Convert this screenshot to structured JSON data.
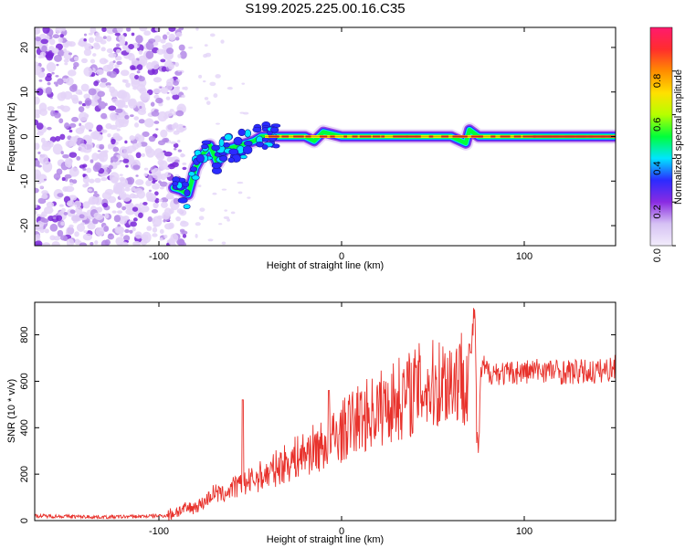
{
  "title": "S199.2025.225.00.16.C35",
  "colors": {
    "snr_line": "#e8322c",
    "ridge_core": "#e8322c",
    "noise_light": "#e4d4f8",
    "noise_mid": "#b48ae8",
    "noise_dark": "#7a28d8",
    "frame": "#000000"
  },
  "chart_data": [
    {
      "name": "spectrogram",
      "type": "heatmap",
      "xlabel": "Height of straight line (km)",
      "ylabel": "Frequency (Hz)",
      "xlim": [
        -168,
        150
      ],
      "ylim": [
        -24.5,
        24.5
      ],
      "xticks": [
        -100,
        0,
        100
      ],
      "yticks": [
        -20,
        -10,
        0,
        10,
        20
      ],
      "xtick_labels": [
        "-100",
        "0",
        "100"
      ],
      "ytick_labels": [
        "-20",
        "-10",
        "0",
        "10",
        "20"
      ],
      "ridge": {
        "x": [
          -92,
          -88,
          -84,
          -80,
          -76,
          -72,
          -68,
          -64,
          -60,
          -56,
          -52,
          -48,
          -44,
          -40,
          -30,
          -20,
          -15,
          -10,
          0,
          20,
          40,
          60,
          68,
          70,
          75,
          80,
          100,
          120,
          150
        ],
        "y": [
          -11.5,
          -12,
          -13,
          -7,
          -4,
          -2,
          -6,
          -3,
          -2.5,
          -2,
          -1.5,
          -1,
          0,
          0,
          0,
          0,
          -1,
          1,
          0,
          0,
          0,
          0,
          -1.5,
          1.5,
          0,
          0,
          0,
          0,
          0
        ]
      },
      "colorbar": {
        "label": "Normalized spectral amplitude",
        "range": [
          0,
          1
        ],
        "ticks": [
          0.0,
          0.2,
          0.4,
          0.6,
          0.8
        ],
        "tick_labels": [
          "0.0",
          "0.2",
          "0.4",
          "0.6",
          "0.8"
        ],
        "stops": [
          "#f2ecfb",
          "#d6c2f4",
          "#8a2be2",
          "#2b2bff",
          "#00e5ff",
          "#00ff3a",
          "#b6ff00",
          "#ffe000",
          "#ff8c00",
          "#ff2d2d",
          "#ff1a6e"
        ]
      }
    },
    {
      "name": "snr",
      "type": "line",
      "xlabel": "Height of straight line (km)",
      "ylabel": "SNR (10 * v/v)",
      "xlim": [
        -168,
        150
      ],
      "ylim": [
        0,
        940
      ],
      "xticks": [
        -100,
        0,
        100
      ],
      "yticks": [
        0,
        200,
        400,
        600,
        800
      ],
      "xtick_labels": [
        "-100",
        "0",
        "100"
      ],
      "ytick_labels": [
        "0",
        "200",
        "400",
        "600",
        "800"
      ],
      "series": [
        {
          "name": "SNR",
          "x": [
            -168,
            -150,
            -130,
            -110,
            -95,
            -90,
            -85,
            -80,
            -75,
            -70,
            -65,
            -60,
            -55,
            -50,
            -45,
            -40,
            -35,
            -30,
            -25,
            -20,
            -15,
            -10,
            -5,
            0,
            5,
            10,
            15,
            20,
            25,
            30,
            35,
            40,
            45,
            50,
            55,
            60,
            65,
            70,
            73,
            74,
            75,
            76,
            77,
            78,
            80,
            85,
            90,
            95,
            100,
            110,
            120,
            130,
            140,
            150
          ],
          "values": [
            20,
            18,
            15,
            18,
            22,
            40,
            50,
            60,
            80,
            120,
            110,
            140,
            150,
            170,
            190,
            200,
            230,
            250,
            270,
            290,
            310,
            320,
            350,
            380,
            420,
            440,
            460,
            480,
            500,
            520,
            540,
            560,
            580,
            580,
            600,
            610,
            620,
            640,
            940,
            350,
            280,
            600,
            650,
            660,
            640,
            640,
            630,
            640,
            640,
            650,
            640,
            640,
            640,
            660
          ]
        }
      ],
      "spikes": [
        {
          "x": -54,
          "y": 520
        },
        {
          "x": -7,
          "y": 560
        },
        {
          "x": 70,
          "y": 760
        }
      ]
    }
  ]
}
